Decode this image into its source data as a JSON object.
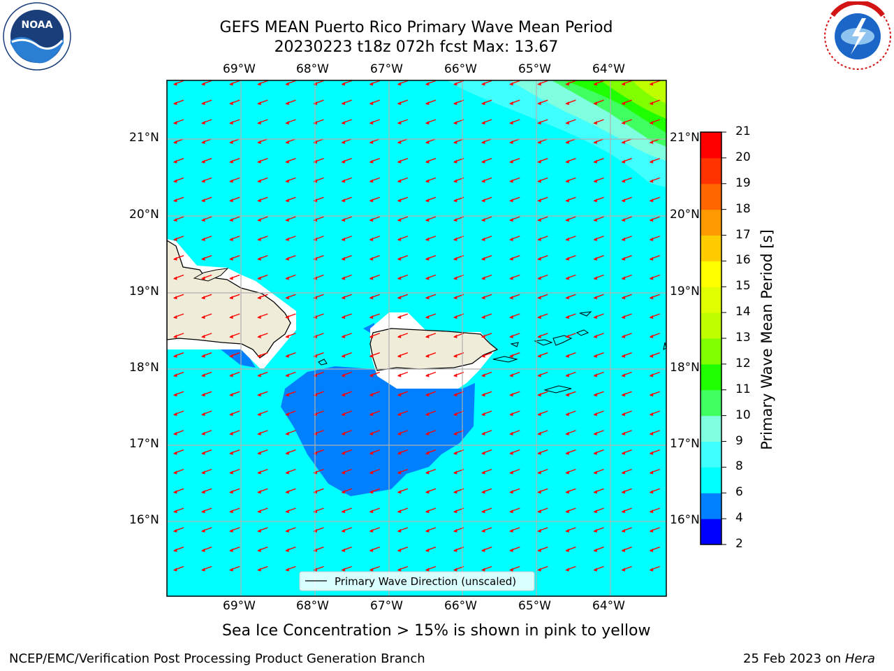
{
  "title": {
    "line1": "GEFS MEAN Puerto Rico Primary Wave Mean Period",
    "line2": "20230223 t18z 072h fcst   Max: 13.67"
  },
  "map": {
    "lon_labels": [
      "69°W",
      "68°W",
      "67°W",
      "66°W",
      "65°W",
      "64°W"
    ],
    "lat_labels": [
      "21°N",
      "20°N",
      "19°N",
      "18°N",
      "17°N",
      "16°N"
    ],
    "legend": "Primary Wave Direction (unscaled)",
    "arrow_color": "#ff0000"
  },
  "colorbar": {
    "label": "Primary Wave Mean Period [s]",
    "ticks": [
      "2",
      "4",
      "6",
      "8",
      "9",
      "10",
      "11",
      "12",
      "13",
      "14",
      "15",
      "16",
      "17",
      "18",
      "19",
      "20",
      "21"
    ],
    "colors": [
      "#0000ff",
      "#0080ff",
      "#00ffff",
      "#40ffff",
      "#80ffe0",
      "#40ff60",
      "#20ff00",
      "#80ff00",
      "#c0ff00",
      "#e0ff00",
      "#ffff00",
      "#ffcc00",
      "#ff9900",
      "#ff6600",
      "#ff3300",
      "#ff0000"
    ]
  },
  "caption": "Sea Ice Concentration > 15% is shown in pink to yellow",
  "footer": {
    "left": "NCEP/EMC/Verification Post Processing Product Generation Branch",
    "right_date": "25 Feb 2023 on ",
    "right_host": "Hera"
  },
  "logos": {
    "noaa_text": "NOAA",
    "noaa_ring": "NATIONAL OCEANIC AND ATMOSPHERIC ADMINISTRATION · U.S. DEPARTMENT OF COMMERCE",
    "nws_ring": "NATIONAL WEATHER SERVICE"
  }
}
